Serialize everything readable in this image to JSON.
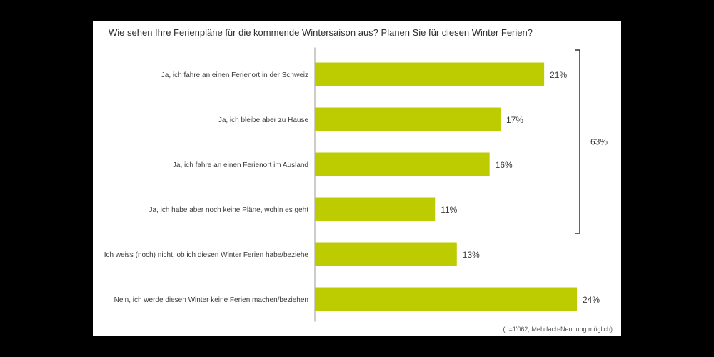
{
  "title": "Wie sehen Ihre Ferienpläne für die kommende Wintersaison aus? Planen Sie für diesen Winter Ferien?",
  "footnote": "(n=1'062; Mehrfach-Nennung möglich)",
  "bracket_label": "63%",
  "colors": {
    "bar": "#bccc00",
    "axis": "#9a9a9a",
    "text": "#3a3a3a",
    "background": "#ffffff"
  },
  "chart_data": {
    "type": "bar",
    "orientation": "horizontal",
    "unit": "%",
    "categories": [
      "Ja, ich fahre an einen Ferienort in der Schweiz",
      "Ja, ich bleibe aber zu Hause",
      "Ja, ich fahre an einen Ferienort im Ausland",
      "Ja, ich habe aber noch keine Pläne, wohin es geht",
      "Ich weiss (noch) nicht, ob ich diesen Winter Ferien habe/beziehe",
      "Nein, ich werde diesen Winter keine Ferien machen/beziehen"
    ],
    "values": [
      21,
      17,
      16,
      11,
      13,
      24
    ],
    "value_labels": [
      "21%",
      "17%",
      "16%",
      "11%",
      "13%",
      "24%"
    ],
    "xlim": [
      0,
      24
    ],
    "grid": false,
    "legend": "none",
    "bracket": {
      "from_index": 0,
      "to_index": 3,
      "label": "63%"
    }
  }
}
